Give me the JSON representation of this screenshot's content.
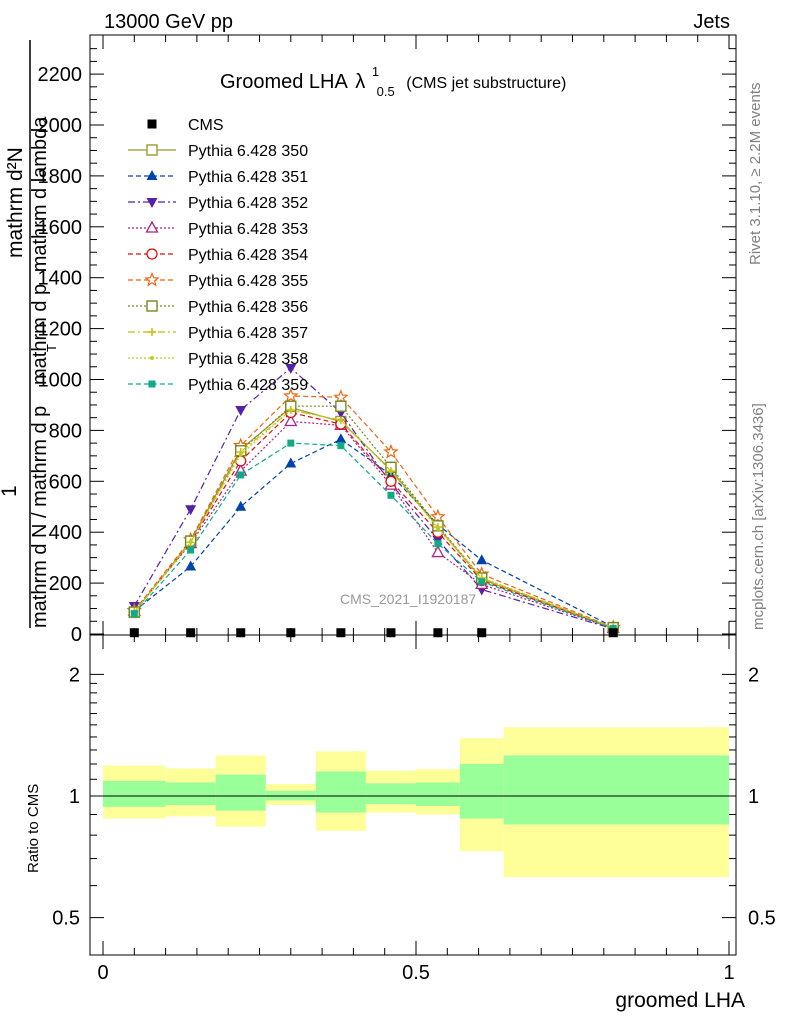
{
  "header": {
    "left": "13000 GeV pp",
    "right": "Jets"
  },
  "side_labels": {
    "rivet": "Rivet 3.1.10, ≥ 2.2M events",
    "mcplots": "mcplots.cern.ch [arXiv:1306.3436]"
  },
  "chart_data": [
    {
      "type": "line",
      "title_main": "Groomed LHA",
      "title_lambda": "λ",
      "title_sup": "1",
      "title_sub": "0.5",
      "title_note": "(CMS jet substructure)",
      "ylabel_top": "mathrm d²N",
      "ylabel_num": "1",
      "ylabel_den": "mathrm d N / mathrm d p",
      "ylabel_parts": [
        "mathrm d p",
        "mathrm d lambda"
      ],
      "ylabel_T": "T",
      "watermark": "CMS_2021_I1920187",
      "xlim": [
        0,
        1
      ],
      "ylim": [
        0,
        2350
      ],
      "yticks": [
        "0",
        "200",
        "400",
        "600",
        "800",
        "1000",
        "1200",
        "1400",
        "1600",
        "1800",
        "2000",
        "2200"
      ],
      "x": [
        0.05,
        0.14,
        0.22,
        0.3,
        0.38,
        0.46,
        0.535,
        0.605,
        0.815
      ],
      "cms": {
        "name": "CMS",
        "values": [
          5,
          5,
          5,
          5,
          5,
          5,
          5,
          5,
          5
        ]
      },
      "series": [
        {
          "name": "Pythia 6.428 350",
          "color": "#999933",
          "marker": "open-square",
          "dash": "solid",
          "values": [
            85,
            365,
            725,
            890,
            835,
            645,
            420,
            215,
            25
          ]
        },
        {
          "name": "Pythia 6.428 351",
          "color": "#0044aa",
          "marker": "filled-triangle-up",
          "dash": "dashed",
          "values": [
            90,
            265,
            500,
            670,
            765,
            625,
            430,
            290,
            28
          ]
        },
        {
          "name": "Pythia 6.428 352",
          "color": "#5522aa",
          "marker": "filled-triangle-down",
          "dash": "dashdot",
          "values": [
            110,
            490,
            880,
            1045,
            870,
            590,
            370,
            175,
            20
          ]
        },
        {
          "name": "Pythia 6.428 353",
          "color": "#aa2288",
          "marker": "open-triangle-up",
          "dash": "dotted",
          "values": [
            90,
            355,
            640,
            835,
            820,
            585,
            320,
            195,
            22
          ]
        },
        {
          "name": "Pythia 6.428 354",
          "color": "#dd1111",
          "marker": "open-circle",
          "dash": "dashed",
          "values": [
            88,
            360,
            680,
            870,
            825,
            600,
            400,
            210,
            24
          ]
        },
        {
          "name": "Pythia 6.428 355",
          "color": "#ee6611",
          "marker": "open-star",
          "dash": "dashed",
          "values": [
            92,
            370,
            740,
            935,
            930,
            715,
            460,
            235,
            26
          ]
        },
        {
          "name": "Pythia 6.428 356",
          "color": "#778822",
          "marker": "open-square",
          "dash": "dotted",
          "values": [
            86,
            365,
            720,
            895,
            895,
            655,
            425,
            220,
            25
          ]
        },
        {
          "name": "Pythia 6.428 357",
          "color": "#ccbb00",
          "marker": "cross",
          "dash": "dashdot",
          "values": [
            87,
            360,
            715,
            880,
            840,
            640,
            420,
            220,
            25
          ]
        },
        {
          "name": "Pythia 6.428 358",
          "color": "#bbcc22",
          "marker": "dot",
          "dash": "dotted",
          "values": [
            86,
            362,
            705,
            880,
            840,
            640,
            415,
            218,
            25
          ]
        },
        {
          "name": "Pythia 6.428 359",
          "color": "#11aa88",
          "marker": "filled-square",
          "dash": "dashed",
          "values": [
            80,
            330,
            625,
            750,
            740,
            545,
            355,
            205,
            22
          ]
        }
      ]
    },
    {
      "type": "area",
      "ylabel": "Ratio to CMS",
      "xlabel": "groomed LHA",
      "xlim": [
        0,
        1
      ],
      "ylim": [
        0.4,
        2.3
      ],
      "log_y": true,
      "xticks": [
        "0",
        "0.5",
        "1"
      ],
      "yticks": [
        "0.5",
        "1",
        "2"
      ],
      "bins": [
        {
          "lo": 0.0,
          "hi": 0.1,
          "inner": [
            0.94,
            1.09
          ],
          "outer": [
            0.88,
            1.19
          ]
        },
        {
          "lo": 0.1,
          "hi": 0.18,
          "inner": [
            0.95,
            1.08
          ],
          "outer": [
            0.89,
            1.17
          ]
        },
        {
          "lo": 0.18,
          "hi": 0.26,
          "inner": [
            0.92,
            1.13
          ],
          "outer": [
            0.84,
            1.26
          ]
        },
        {
          "lo": 0.26,
          "hi": 0.34,
          "inner": [
            0.975,
            1.03
          ],
          "outer": [
            0.95,
            1.07
          ]
        },
        {
          "lo": 0.34,
          "hi": 0.42,
          "inner": [
            0.91,
            1.15
          ],
          "outer": [
            0.82,
            1.29
          ]
        },
        {
          "lo": 0.42,
          "hi": 0.5,
          "inner": [
            0.955,
            1.075
          ],
          "outer": [
            0.91,
            1.155
          ]
        },
        {
          "lo": 0.5,
          "hi": 0.57,
          "inner": [
            0.945,
            1.08
          ],
          "outer": [
            0.9,
            1.165
          ]
        },
        {
          "lo": 0.57,
          "hi": 0.64,
          "inner": [
            0.88,
            1.2
          ],
          "outer": [
            0.73,
            1.39
          ]
        },
        {
          "lo": 0.64,
          "hi": 1.0,
          "inner": [
            0.85,
            1.26
          ],
          "outer": [
            0.63,
            1.48
          ]
        }
      ]
    }
  ]
}
